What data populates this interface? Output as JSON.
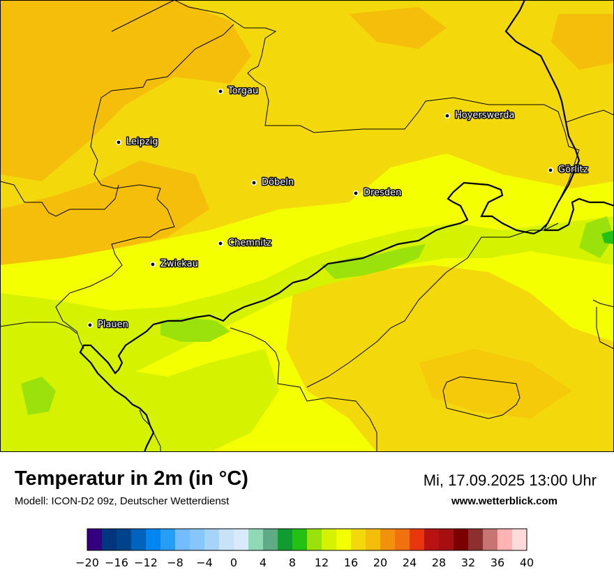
{
  "map": {
    "background_color": "#f3d90c",
    "frame_color": "#000000",
    "cities": [
      {
        "name": "Torgau"
      },
      {
        "name": "Hoyerswerda"
      },
      {
        "name": "Leipzig"
      },
      {
        "name": "Görlitz"
      },
      {
        "name": "Döbeln"
      },
      {
        "name": "Dresden"
      },
      {
        "name": "Chemnitz"
      },
      {
        "name": "Zwickau"
      },
      {
        "name": "Plauen"
      }
    ]
  },
  "header": {
    "title": "Temperatur in 2m (in °C)",
    "subtitle": "Modell: ICON-D2 09z, Deutscher Wetterdienst",
    "datetime": "Mi, 17.09.2025 13:00 Uhr",
    "website": "www.wetterblick.com"
  },
  "legend": {
    "min": -20,
    "max": 40,
    "step": 2,
    "tick_labels": [
      "−20",
      "−16",
      "−12",
      "−8",
      "−4",
      "0",
      "4",
      "8",
      "12",
      "16",
      "20",
      "24",
      "28",
      "32",
      "36",
      "40"
    ],
    "colors": [
      "#35007f",
      "#00357f",
      "#00438a",
      "#0063bd",
      "#0086f0",
      "#289df5",
      "#72bcff",
      "#86c6fc",
      "#a6d4f8",
      "#c8e2f8",
      "#d8eafc",
      "#8fd9b6",
      "#60ab86",
      "#109c31",
      "#22c114",
      "#9be10b",
      "#d5f200",
      "#f4ff00",
      "#f3d90c",
      "#f5be0b",
      "#f2910c",
      "#f0710f",
      "#e8360f",
      "#b71314",
      "#a60f12",
      "#7a0001",
      "#8b2f2f",
      "#c87473",
      "#ffb4b3",
      "#ffdadb"
    ]
  }
}
